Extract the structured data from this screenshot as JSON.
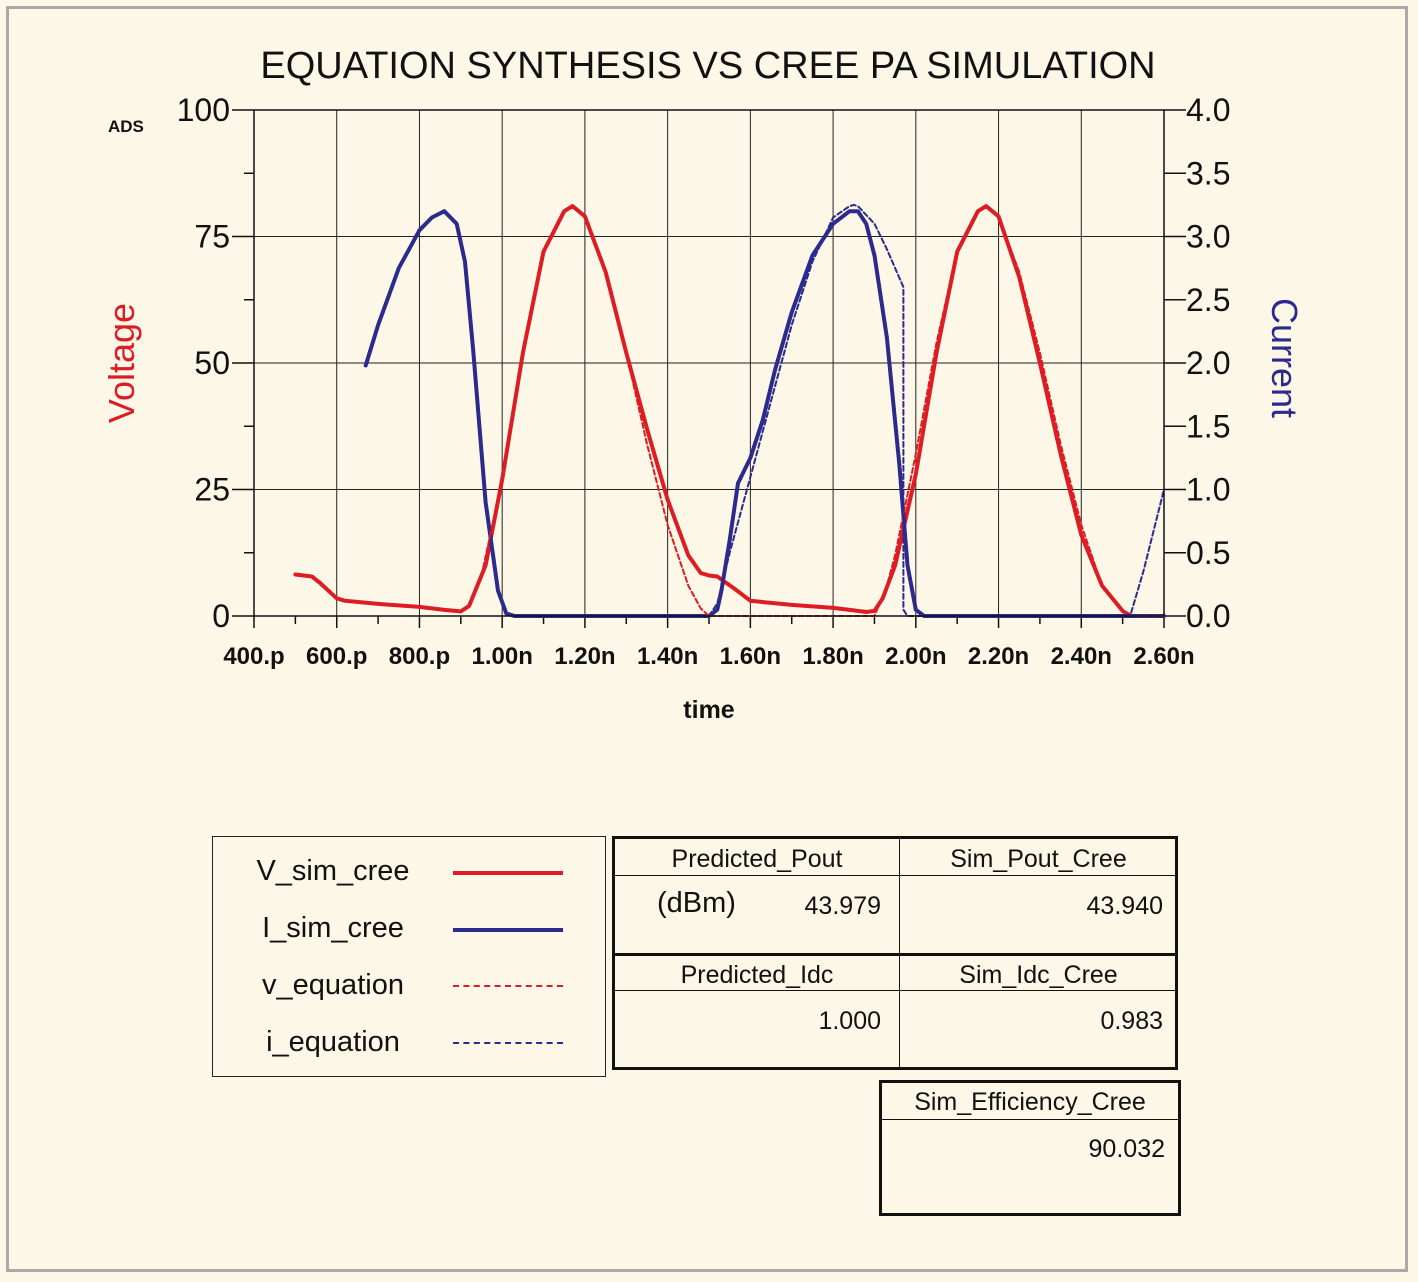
{
  "chart_data": {
    "type": "line",
    "title": "EQUATION SYNTHESIS VS CREE PA SIMULATION",
    "watermark": "ADS",
    "xlabel": "time",
    "ylabel_left": "Voltage",
    "ylabel_right": "Current",
    "xlim": [
      0.4,
      2.6
    ],
    "ylim_left": [
      0,
      100
    ],
    "ylim_right": [
      0,
      4.0
    ],
    "x_unit": "ns",
    "x_ticks": [
      0.4,
      0.6,
      0.8,
      1.0,
      1.2,
      1.4,
      1.6,
      1.8,
      2.0,
      2.2,
      2.4,
      2.6
    ],
    "x_tick_labels": [
      "400.p",
      "600.p",
      "800.p",
      "1.00n",
      "1.20n",
      "1.40n",
      "1.60n",
      "1.80n",
      "2.00n",
      "2.20n",
      "2.40n",
      "2.60n"
    ],
    "y_left_ticks": [
      0,
      25,
      50,
      75,
      100
    ],
    "y_left_tick_labels": [
      "0",
      "25",
      "50",
      "75",
      "100"
    ],
    "y_right_ticks": [
      0,
      0.5,
      1.0,
      1.5,
      2.0,
      2.5,
      3.0,
      3.5,
      4.0
    ],
    "y_right_tick_labels": [
      "0.0",
      "0.5",
      "1.0",
      "1.5",
      "2.0",
      "2.5",
      "3.0",
      "3.5",
      "4.0"
    ],
    "grid": true,
    "colors": {
      "voltage": "#dd1c24",
      "current": "#2c2a8c"
    },
    "series": [
      {
        "name": "V_sim_cree",
        "axis": "left",
        "style": "solid",
        "color": "#dd1c24",
        "x": [
          0.5,
          0.54,
          0.56,
          0.6,
          0.62,
          0.7,
          0.8,
          0.86,
          0.9,
          0.92,
          0.96,
          1.0,
          1.05,
          1.1,
          1.15,
          1.17,
          1.2,
          1.25,
          1.3,
          1.35,
          1.4,
          1.45,
          1.48,
          1.5,
          1.52,
          1.56,
          1.6,
          1.7,
          1.8,
          1.85,
          1.88,
          1.9,
          1.92,
          1.95,
          2.0,
          2.05,
          2.1,
          2.15,
          2.17,
          2.2,
          2.25,
          2.3,
          2.35,
          2.4,
          2.45,
          2.5,
          2.52,
          2.55,
          2.6
        ],
        "y": [
          8.2,
          7.8,
          6.5,
          3.5,
          3.0,
          2.4,
          1.8,
          1.2,
          0.9,
          2.0,
          10,
          27,
          52,
          72,
          80,
          81,
          79,
          68,
          52,
          37,
          23,
          12,
          8.5,
          8.0,
          7.8,
          5.5,
          3.0,
          2.2,
          1.6,
          1.1,
          0.8,
          1.0,
          3.5,
          10,
          28,
          52,
          72,
          80,
          81,
          79,
          67,
          50,
          32,
          16,
          6,
          1,
          0,
          0,
          0
        ]
      },
      {
        "name": "I_sim_cree",
        "axis": "right",
        "style": "solid",
        "color": "#2c2a8c",
        "x": [
          0.67,
          0.7,
          0.75,
          0.8,
          0.83,
          0.86,
          0.89,
          0.91,
          0.93,
          0.96,
          0.99,
          1.01,
          1.03,
          1.1,
          1.2,
          1.3,
          1.4,
          1.5,
          1.52,
          1.53,
          1.55,
          1.57,
          1.6,
          1.63,
          1.66,
          1.7,
          1.75,
          1.8,
          1.84,
          1.86,
          1.88,
          1.9,
          1.93,
          1.96,
          1.98,
          2.0,
          2.02,
          2.1,
          2.2,
          2.4,
          2.6
        ],
        "y": [
          1.98,
          2.3,
          2.75,
          3.05,
          3.15,
          3.2,
          3.1,
          2.8,
          2.1,
          0.9,
          0.2,
          0.02,
          0,
          0,
          0,
          0,
          0,
          0,
          0.05,
          0.2,
          0.6,
          1.05,
          1.25,
          1.55,
          1.95,
          2.4,
          2.85,
          3.1,
          3.2,
          3.2,
          3.1,
          2.85,
          2.2,
          1.2,
          0.4,
          0.05,
          0,
          0,
          0,
          0,
          0
        ]
      },
      {
        "name": "v_equation",
        "axis": "left",
        "style": "dashed",
        "color": "#dd1c24",
        "x": [
          0.95,
          1.0,
          1.05,
          1.1,
          1.15,
          1.17,
          1.2,
          1.25,
          1.3,
          1.35,
          1.4,
          1.45,
          1.48,
          1.5,
          1.52,
          1.55,
          1.6,
          1.7,
          1.8,
          1.9,
          1.93,
          1.95,
          2.0,
          2.05,
          2.1,
          2.15,
          2.17,
          2.2,
          2.25,
          2.3,
          2.35,
          2.4,
          2.45,
          2.5,
          2.52,
          2.55,
          2.6
        ],
        "y": [
          8,
          27,
          52,
          72,
          80,
          81,
          79,
          68,
          52,
          34,
          18,
          6,
          1.5,
          0,
          0,
          0,
          0,
          0,
          0,
          0,
          6,
          12,
          32,
          54,
          72,
          80,
          81,
          79,
          68,
          52,
          34,
          18,
          6,
          1,
          0,
          0,
          0
        ]
      },
      {
        "name": "i_equation",
        "axis": "right",
        "style": "dashed",
        "color": "#2c2a8c",
        "x": [
          1.5,
          1.52,
          1.55,
          1.6,
          1.65,
          1.7,
          1.75,
          1.8,
          1.84,
          1.85,
          1.86,
          1.9,
          1.93,
          1.95,
          1.97,
          1.97,
          1.98,
          2.0,
          2.1,
          2.2,
          2.3,
          2.4,
          2.5,
          2.52,
          2.55,
          2.6
        ],
        "y": [
          0,
          0.1,
          0.5,
          1.1,
          1.7,
          2.3,
          2.8,
          3.15,
          3.24,
          3.25,
          3.24,
          3.1,
          2.9,
          2.75,
          2.6,
          0.05,
          0,
          0,
          0,
          0,
          0,
          0,
          0,
          0.02,
          0.35,
          1.0
        ]
      }
    ]
  },
  "legend": [
    {
      "label": "V_sim_cree",
      "style": "solid",
      "color": "#dd1c24"
    },
    {
      "label": "I_sim_cree",
      "style": "solid",
      "color": "#2c2a8c"
    },
    {
      "label": "v_equation",
      "style": "dashed",
      "color": "#dd1c24"
    },
    {
      "label": "i_equation",
      "style": "dashed",
      "color": "#2c2a8c"
    }
  ],
  "table1": {
    "predicted_pout_header": "Predicted_Pout",
    "sim_pout_header": "Sim_Pout_Cree",
    "unit": "(dBm)",
    "predicted_pout": "43.979",
    "sim_pout": "43.940",
    "predicted_idc_header": "Predicted_Idc",
    "sim_idc_header": "Sim_Idc_Cree",
    "predicted_idc": "1.000",
    "sim_idc": "0.983"
  },
  "table2": {
    "header": "Sim_Efficiency_Cree",
    "value": "90.032"
  }
}
